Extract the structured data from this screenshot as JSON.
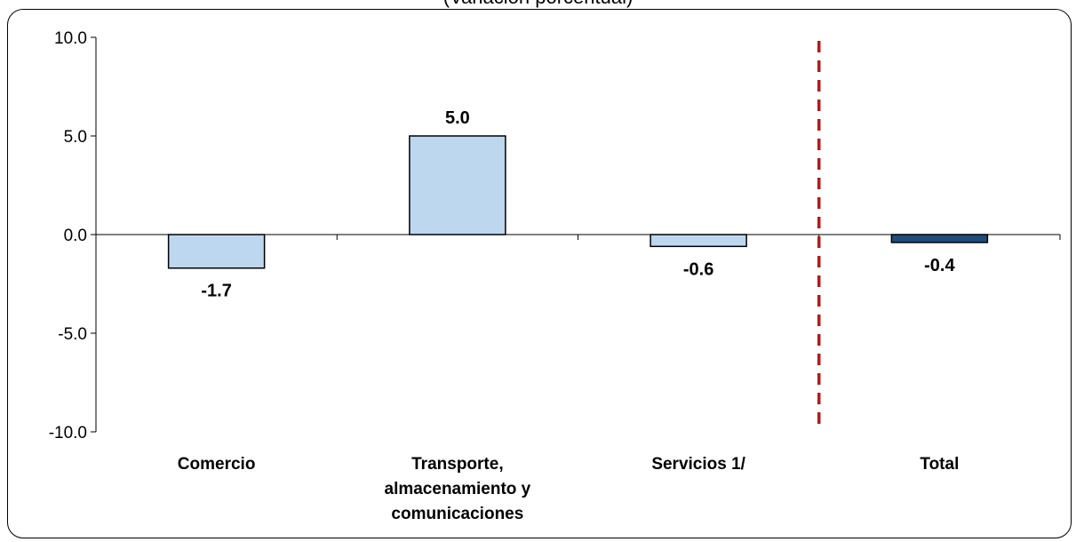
{
  "chart_data": {
    "type": "bar",
    "title": "(Variación porcentual)",
    "xlabel": "",
    "ylabel": "",
    "ylim": [
      -10,
      10
    ],
    "yticks": [
      "10.0",
      "5.0",
      "0.0",
      "-5.0",
      "-10.0"
    ],
    "categories": [
      [
        "Comercio"
      ],
      [
        "Transporte,",
        "almacenamiento y",
        "comunicaciones"
      ],
      [
        "Servicios 1/"
      ],
      [
        "Total"
      ]
    ],
    "values": [
      -1.7,
      5.0,
      -0.6,
      -0.4
    ],
    "value_labels": [
      "-1.7",
      "5.0",
      "-0.6",
      "-0.4"
    ],
    "bar_colors": [
      "#bdd7ee",
      "#bdd7ee",
      "#bdd7ee",
      "#1f4e79"
    ],
    "separator_color": "#b01c1c",
    "grid": false,
    "legend": "none"
  }
}
